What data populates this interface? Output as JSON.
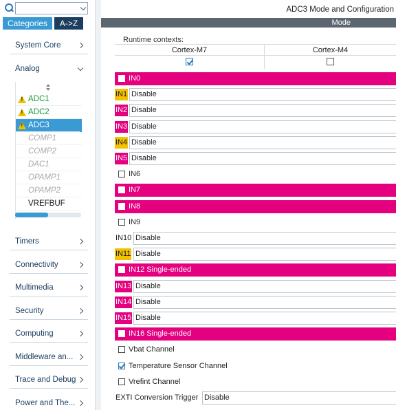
{
  "sidebar": {
    "search_value": "",
    "tabs": [
      {
        "label": "Categories",
        "active": true
      },
      {
        "label": "A->Z",
        "active": false
      }
    ],
    "categories_top": [
      {
        "label": "System Core",
        "expanded": false
      },
      {
        "label": "Analog",
        "expanded": true
      }
    ],
    "analog_items": [
      {
        "label": "ADC1",
        "state": "warn"
      },
      {
        "label": "ADC2",
        "state": "warn"
      },
      {
        "label": "ADC3",
        "state": "selected"
      },
      {
        "label": "COMP1",
        "state": "disabled"
      },
      {
        "label": "COMP2",
        "state": "disabled"
      },
      {
        "label": "DAC1",
        "state": "disabled"
      },
      {
        "label": "OPAMP1",
        "state": "disabled"
      },
      {
        "label": "OPAMP2",
        "state": "disabled"
      },
      {
        "label": "VREFBUF",
        "state": "normal"
      }
    ],
    "categories_bottom": [
      {
        "label": "Timers"
      },
      {
        "label": "Connectivity"
      },
      {
        "label": "Multimedia"
      },
      {
        "label": "Security"
      },
      {
        "label": "Computing"
      },
      {
        "label": "Middleware an..."
      },
      {
        "label": "Trace and Debug"
      },
      {
        "label": "Power and The..."
      }
    ]
  },
  "main": {
    "title": "ADC3 Mode and Configuration",
    "mode_bar": "Mode",
    "runtime_label": "Runtime contexts:",
    "contexts": [
      {
        "label": "Cortex-M7",
        "checked": true
      },
      {
        "label": "Cortex-M4",
        "checked": false
      }
    ],
    "rows": [
      {
        "kind": "check",
        "label": "IN0",
        "checked": false,
        "highlight": "magenta"
      },
      {
        "kind": "select",
        "label": "IN1",
        "value": "Disable",
        "tag": "yellow"
      },
      {
        "kind": "select",
        "label": "IN2",
        "value": "Disable",
        "tag": "pink"
      },
      {
        "kind": "select",
        "label": "IN3",
        "value": "Disable",
        "tag": "pink"
      },
      {
        "kind": "select",
        "label": "IN4",
        "value": "Disable",
        "tag": "yellow"
      },
      {
        "kind": "select",
        "label": "IN5",
        "value": "Disable",
        "tag": "pink"
      },
      {
        "kind": "check",
        "label": "IN6",
        "checked": false,
        "highlight": "none"
      },
      {
        "kind": "check",
        "label": "IN7",
        "checked": false,
        "highlight": "magenta"
      },
      {
        "kind": "check",
        "label": "IN8",
        "checked": false,
        "highlight": "magenta"
      },
      {
        "kind": "check",
        "label": "IN9",
        "checked": false,
        "highlight": "none"
      },
      {
        "kind": "select",
        "label": "IN10",
        "value": "Disable",
        "tag": "plain"
      },
      {
        "kind": "select",
        "label": "IN11",
        "value": "Disable",
        "tag": "yellow"
      },
      {
        "kind": "check",
        "label": "IN12 Single-ended",
        "checked": false,
        "highlight": "magenta"
      },
      {
        "kind": "select",
        "label": "IN13",
        "value": "Disable",
        "tag": "pink"
      },
      {
        "kind": "select",
        "label": "IN14",
        "value": "Disable",
        "tag": "pink"
      },
      {
        "kind": "select",
        "label": "IN15",
        "value": "Disable",
        "tag": "pink"
      },
      {
        "kind": "check",
        "label": "IN16 Single-ended",
        "checked": false,
        "highlight": "magenta"
      },
      {
        "kind": "check",
        "label": "Vbat Channel",
        "checked": false,
        "highlight": "none"
      },
      {
        "kind": "check",
        "label": "Temperature Sensor Channel",
        "checked": true,
        "highlight": "none"
      },
      {
        "kind": "check",
        "label": "Vrefint Channel",
        "checked": false,
        "highlight": "none"
      },
      {
        "kind": "select",
        "label": "EXTI Conversion Trigger",
        "value": "Disable",
        "tag": "plain"
      }
    ]
  },
  "colors": {
    "accent": "#3a9ad4",
    "tab_inactive": "#1b3d5e",
    "magenta": "#e4007e",
    "yellow": "#f4c200",
    "warn_text": "#1f9a3a",
    "mode_bar": "#5b6670"
  }
}
